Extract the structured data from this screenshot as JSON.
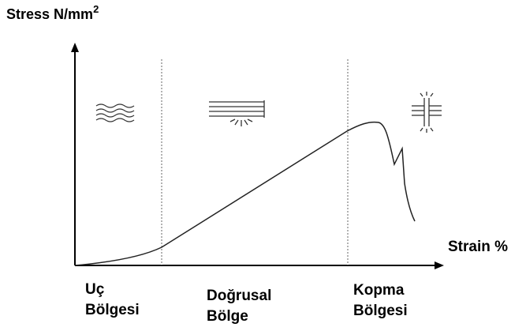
{
  "y_axis": {
    "label": "Stress N/mm",
    "superscript": "2"
  },
  "x_axis": {
    "label": "Strain %"
  },
  "regions": [
    {
      "lines": [
        "Uç",
        "Bölgesi"
      ]
    },
    {
      "lines": [
        "Doğrusal",
        "Bölge"
      ]
    },
    {
      "lines": [
        "Kopma",
        "Bölgesi"
      ]
    }
  ]
}
